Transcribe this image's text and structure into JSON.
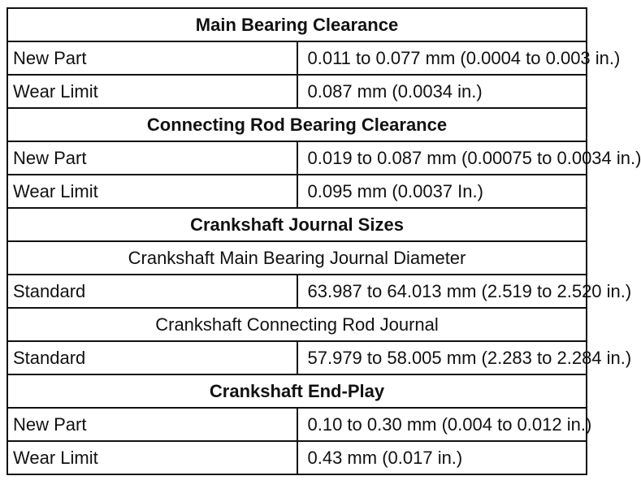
{
  "sections": [
    {
      "title": "Main Bearing Clearance",
      "rows": [
        {
          "label": "New Part",
          "value": "0.011 to 0.077 mm (0.0004 to 0.003 in.)"
        },
        {
          "label": "Wear Limit",
          "value": "0.087 mm (0.0034 in.)"
        }
      ]
    },
    {
      "title": "Connecting Rod Bearing Clearance",
      "rows": [
        {
          "label": "New Part",
          "value": "0.019 to 0.087 mm (0.00075 to 0.0034 in.)"
        },
        {
          "label": "Wear Limit",
          "value": "0.095 mm (0.0037 In.)"
        }
      ]
    },
    {
      "title": "Crankshaft Journal Sizes",
      "subsections": [
        {
          "title": "Crankshaft Main Bearing Journal Diameter",
          "rows": [
            {
              "label": "Standard",
              "value": "63.987 to 64.013 mm (2.519 to 2.520 in.)"
            }
          ]
        },
        {
          "title": "Crankshaft Connecting Rod Journal",
          "rows": [
            {
              "label": "Standard",
              "value": "57.979 to 58.005 mm (2.283 to 2.284 in.)"
            }
          ]
        }
      ]
    },
    {
      "title": "Crankshaft End-Play",
      "rows": [
        {
          "label": "New Part",
          "value": "0.10 to 0.30 mm (0.004 to 0.012 in.)"
        },
        {
          "label": "Wear Limit",
          "value": "0.43 mm (0.017 in.)"
        }
      ]
    }
  ]
}
